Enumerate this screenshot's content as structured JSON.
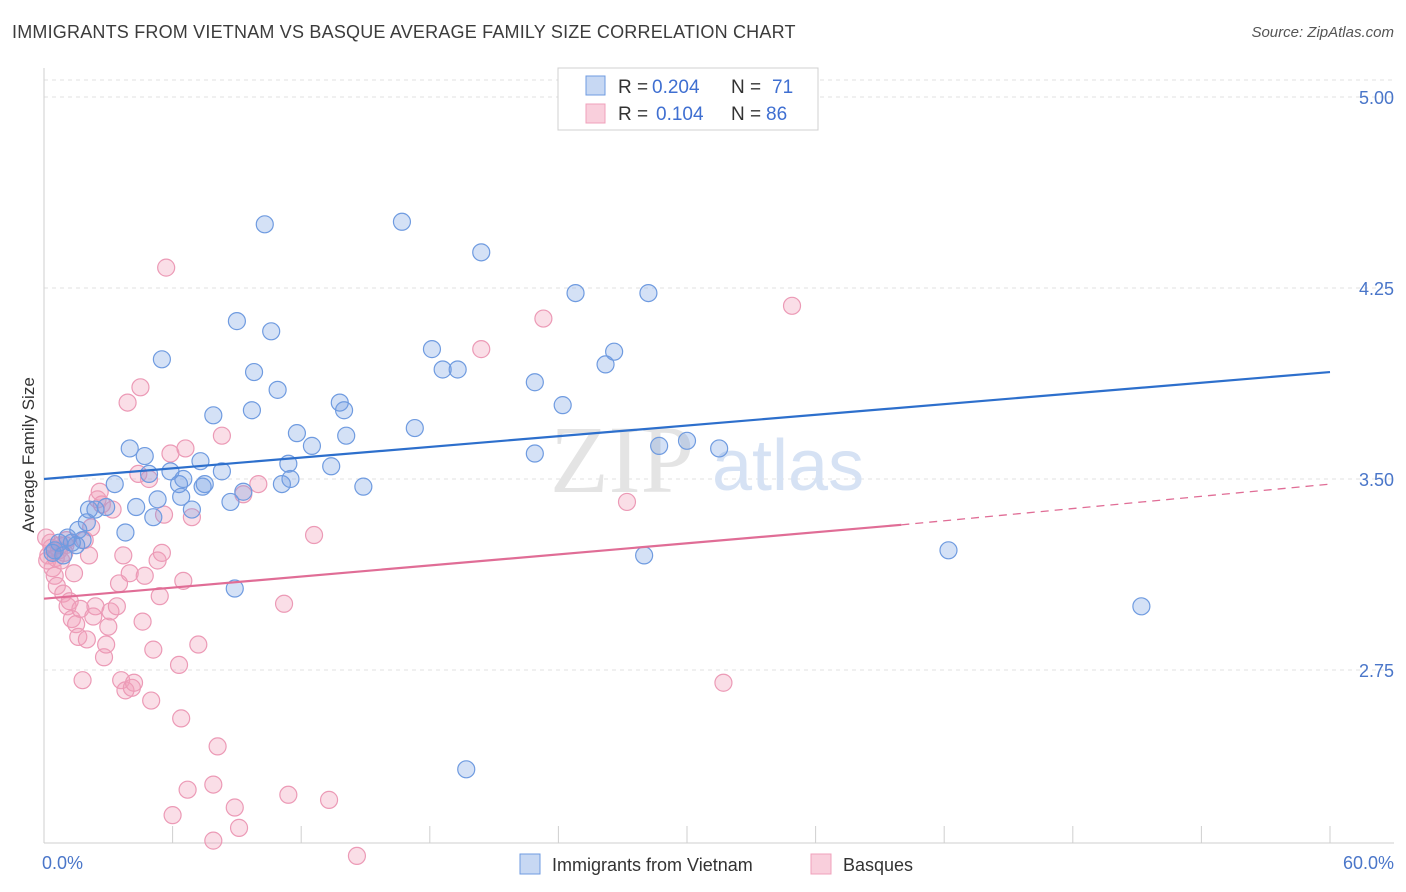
{
  "title": "IMMIGRANTS FROM VIETNAM VS BASQUE AVERAGE FAMILY SIZE CORRELATION CHART",
  "source": "Source: ZipAtlas.com",
  "watermark": {
    "zip": "ZIP",
    "atlas": "atlas"
  },
  "legend": {
    "rows": [
      {
        "r_label": "R =",
        "r_value": "0.204",
        "n_label": "N =",
        "n_value": "71"
      },
      {
        "r_label": "R =",
        "r_value": "0.104",
        "n_label": "N =",
        "n_value": "86"
      }
    ]
  },
  "chart_data": {
    "type": "scatter",
    "title": "IMMIGRANTS FROM VIETNAM VS BASQUE AVERAGE FAMILY SIZE CORRELATION CHART",
    "xlabel": "",
    "ylabel": "Average Family Size",
    "xlim": [
      0,
      60
    ],
    "ylim": [
      2.0,
      5.15
    ],
    "x_tick_labels": [
      "0.0%",
      "60.0%"
    ],
    "y_ticks": [
      2.75,
      3.5,
      4.25,
      5.0
    ],
    "y_tick_labels": [
      "2.75",
      "3.50",
      "4.25",
      "5.00"
    ],
    "grid": "horizontal dashed",
    "legend_position": "top-center",
    "colors": {
      "blue": "#6f9be0",
      "blue_line": "#2d6fcc",
      "pink": "#f0a0bb",
      "pink_line": "#e06d96"
    },
    "series": [
      {
        "name": "Immigrants from Vietnam",
        "color": "#6f9be0",
        "trend": {
          "x0": 0,
          "y0": 3.5,
          "x1": 60,
          "y1": 3.92
        },
        "points": [
          [
            0.5,
            3.22
          ],
          [
            0.7,
            3.25
          ],
          [
            0.9,
            3.2
          ],
          [
            1.1,
            3.27
          ],
          [
            1.3,
            3.25
          ],
          [
            1.5,
            3.24
          ],
          [
            1.8,
            3.26
          ],
          [
            2.0,
            3.33
          ],
          [
            2.1,
            3.38
          ],
          [
            2.4,
            3.38
          ],
          [
            2.9,
            3.39
          ],
          [
            3.3,
            3.48
          ],
          [
            3.8,
            3.29
          ],
          [
            4.0,
            3.62
          ],
          [
            4.3,
            3.39
          ],
          [
            4.7,
            3.59
          ],
          [
            4.9,
            3.52
          ],
          [
            5.1,
            3.35
          ],
          [
            5.3,
            3.42
          ],
          [
            5.5,
            3.97
          ],
          [
            5.9,
            3.53
          ],
          [
            6.3,
            3.48
          ],
          [
            6.4,
            3.43
          ],
          [
            6.5,
            3.5
          ],
          [
            6.9,
            3.38
          ],
          [
            7.3,
            3.57
          ],
          [
            7.4,
            3.47
          ],
          [
            7.5,
            3.48
          ],
          [
            7.9,
            3.75
          ],
          [
            8.3,
            3.53
          ],
          [
            8.7,
            3.41
          ],
          [
            8.9,
            3.07
          ],
          [
            9.0,
            4.12
          ],
          [
            9.3,
            3.45
          ],
          [
            9.7,
            3.77
          ],
          [
            9.8,
            3.92
          ],
          [
            10.3,
            4.5
          ],
          [
            10.6,
            4.08
          ],
          [
            10.9,
            3.85
          ],
          [
            11.1,
            3.48
          ],
          [
            11.4,
            3.56
          ],
          [
            11.5,
            3.5
          ],
          [
            11.8,
            3.68
          ],
          [
            12.5,
            3.63
          ],
          [
            13.4,
            3.55
          ],
          [
            13.8,
            3.8
          ],
          [
            14.0,
            3.77
          ],
          [
            14.1,
            3.67
          ],
          [
            14.9,
            3.47
          ],
          [
            16.7,
            4.51
          ],
          [
            17.3,
            3.7
          ],
          [
            18.1,
            4.01
          ],
          [
            18.6,
            3.93
          ],
          [
            19.3,
            3.93
          ],
          [
            19.7,
            2.36
          ],
          [
            20.4,
            4.39
          ],
          [
            22.9,
            3.88
          ],
          [
            22.9,
            3.6
          ],
          [
            24.2,
            3.79
          ],
          [
            24.8,
            4.23
          ],
          [
            26.2,
            3.95
          ],
          [
            26.6,
            4.0
          ],
          [
            28.0,
            3.2
          ],
          [
            28.2,
            4.23
          ],
          [
            28.7,
            3.63
          ],
          [
            30.0,
            3.65
          ],
          [
            31.5,
            3.62
          ],
          [
            42.2,
            3.22
          ],
          [
            51.2,
            3.0
          ],
          [
            0.4,
            3.21
          ],
          [
            1.6,
            3.3
          ]
        ]
      },
      {
        "name": "Basques",
        "color": "#f0a0bb",
        "trend": {
          "x0": 0,
          "y0": 3.03,
          "x1": 40,
          "y1": 3.32
        },
        "trend_dashed": {
          "x0": 40,
          "y0": 3.32,
          "x1": 60,
          "y1": 3.48
        },
        "points": [
          [
            0.2,
            3.2
          ],
          [
            0.3,
            3.25
          ],
          [
            0.4,
            3.15
          ],
          [
            0.5,
            3.12
          ],
          [
            0.6,
            3.08
          ],
          [
            0.7,
            3.22
          ],
          [
            0.8,
            3.18
          ],
          [
            0.9,
            3.05
          ],
          [
            1.0,
            3.24
          ],
          [
            1.1,
            3.0
          ],
          [
            1.2,
            3.02
          ],
          [
            1.3,
            2.95
          ],
          [
            1.4,
            3.13
          ],
          [
            1.5,
            2.93
          ],
          [
            1.6,
            2.88
          ],
          [
            1.7,
            2.99
          ],
          [
            1.8,
            2.71
          ],
          [
            1.9,
            3.26
          ],
          [
            2.0,
            2.87
          ],
          [
            2.1,
            3.2
          ],
          [
            2.2,
            3.31
          ],
          [
            2.3,
            2.96
          ],
          [
            2.4,
            3.0
          ],
          [
            2.5,
            3.42
          ],
          [
            2.6,
            3.45
          ],
          [
            2.7,
            3.4
          ],
          [
            2.8,
            2.8
          ],
          [
            2.9,
            2.85
          ],
          [
            3.0,
            2.92
          ],
          [
            3.1,
            2.98
          ],
          [
            3.2,
            3.38
          ],
          [
            3.4,
            3.0
          ],
          [
            3.5,
            3.09
          ],
          [
            3.6,
            2.71
          ],
          [
            3.7,
            3.2
          ],
          [
            3.8,
            2.67
          ],
          [
            3.9,
            3.8
          ],
          [
            4.0,
            3.13
          ],
          [
            4.1,
            2.68
          ],
          [
            4.2,
            2.7
          ],
          [
            4.4,
            3.52
          ],
          [
            4.5,
            3.86
          ],
          [
            4.6,
            2.94
          ],
          [
            4.7,
            3.12
          ],
          [
            4.9,
            3.5
          ],
          [
            5.0,
            2.63
          ],
          [
            5.1,
            2.83
          ],
          [
            5.3,
            3.18
          ],
          [
            5.4,
            3.04
          ],
          [
            5.5,
            3.21
          ],
          [
            5.6,
            3.36
          ],
          [
            5.7,
            4.33
          ],
          [
            5.9,
            3.6
          ],
          [
            6.0,
            2.18
          ],
          [
            6.3,
            2.77
          ],
          [
            6.4,
            2.56
          ],
          [
            6.5,
            3.1
          ],
          [
            6.6,
            3.62
          ],
          [
            6.7,
            2.28
          ],
          [
            6.9,
            3.35
          ],
          [
            7.2,
            2.85
          ],
          [
            7.9,
            2.3
          ],
          [
            7.9,
            2.08
          ],
          [
            8.1,
            2.45
          ],
          [
            8.3,
            3.67
          ],
          [
            8.9,
            2.21
          ],
          [
            9.1,
            2.13
          ],
          [
            9.3,
            3.44
          ],
          [
            10.0,
            3.48
          ],
          [
            11.2,
            3.01
          ],
          [
            11.4,
            2.26
          ],
          [
            12.6,
            3.28
          ],
          [
            13.3,
            2.24
          ],
          [
            14.6,
            2.02
          ],
          [
            20.4,
            4.01
          ],
          [
            23.3,
            4.13
          ],
          [
            27.2,
            3.41
          ],
          [
            31.7,
            2.7
          ],
          [
            34.9,
            4.18
          ],
          [
            0.1,
            3.27
          ],
          [
            0.15,
            3.18
          ],
          [
            0.35,
            3.23
          ],
          [
            0.55,
            3.19
          ],
          [
            0.75,
            3.24
          ],
          [
            0.95,
            3.21
          ],
          [
            1.05,
            3.26
          ]
        ]
      }
    ]
  },
  "x_axis": {
    "left_label": "0.0%",
    "right_label": "60.0%"
  }
}
